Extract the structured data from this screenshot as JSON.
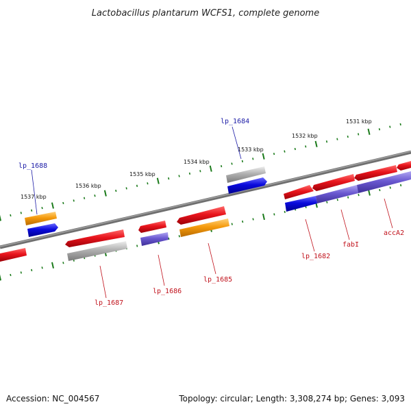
{
  "title": "Lactobacillus plantarum WCFS1, complete genome",
  "footer": {
    "accession": "Accession: NC_004567",
    "summary": "Topology: circular; Length: 3,308,274 bp; Genes: 3,093"
  },
  "scale_labels": [
    "1531 kbp",
    "1532 kbp",
    "1533 kbp",
    "1534 kbp",
    "1535 kbp",
    "1536 kbp",
    "1537 kbp"
  ],
  "gene_labels": {
    "lp_1684": "lp_1684",
    "lp_1688": "lp_1688",
    "lp_1682": "lp_1682",
    "fabI": "fabI",
    "accA2": "accA2",
    "lp_1685": "lp_1685",
    "lp_1686": "lp_1686",
    "lp_1687": "lp_1687"
  },
  "colors": {
    "red": "#e8141c",
    "orange": "#f59a0c",
    "blue": "#0a0adc",
    "purple": "#6a58d0",
    "gray": "#a8a8a8",
    "backbone": "#7a7a7a",
    "ticks": "#1a7a1a",
    "blue_text": "#1a1aa6",
    "red_text": "#c0101a"
  }
}
